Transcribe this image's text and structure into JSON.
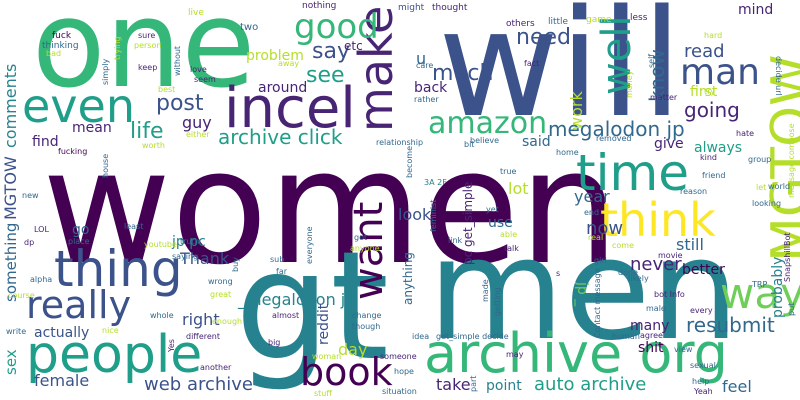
{
  "palette": {
    "dark_purple": "#440154",
    "purple": "#482475",
    "indigo": "#3b528b",
    "blue": "#31688e",
    "teal": "#26828e",
    "teal_green": "#1f9e89",
    "green": "#35b779",
    "light_green": "#6ece58",
    "lime": "#b5de2b",
    "yellow": "#fde725"
  },
  "words": {
    "women": "women",
    "will": "will",
    "gt": "gt",
    "men": "men",
    "one": "one",
    "incel": "incel",
    "archive_org": "archive org",
    "people": "people",
    "time": "time",
    "think": "think",
    "mgtow_big": "MGTOW",
    "thing": "thing",
    "even": "even",
    "make": "make",
    "well": "well",
    "man": "man",
    "good": "good",
    "really": "really",
    "want": "want",
    "book": "book",
    "way": "way",
    "amazon": "amazon",
    "archive_click": "archive click",
    "megalodon_jp": "megalodon jp",
    "much": "much",
    "need": "need",
    "say": "say",
    "see": "see",
    "post": "post",
    "life": "life",
    "going": "going",
    "know": "know",
    "read": "read",
    "work": "work",
    "resubmit": "resubmit",
    "web_archive": "web archive",
    "auto_archive": "auto archive",
    "mgtow_small": "MGTOW",
    "comments": "comments",
    "something": "something",
    "jp_pc": "jp pc",
    "thank": "Thank",
    "go": "go",
    "mean": "mean",
    "guy": "guy",
    "find": "find",
    "sex": "sex",
    "female": "female",
    "actually": "actually",
    "right": "right",
    "reddit": "reddit",
    "day": "day",
    "look": "look",
    "now": "now",
    "never": "never",
    "lot": "lot",
    "year": "year",
    "still": "still",
    "take": "take",
    "point": "point",
    "feel": "feel",
    "many": "many",
    "shit": "shit",
    "better": "better",
    "probably": "probably",
    "always": "always",
    "give": "give",
    "said": "said",
    "first": "first",
    "mind": "mind",
    "problem": "problem",
    "around": "around",
    "back": "back",
    "etc": "etc",
    "u": "u",
    "_megalodon_jp": "_megalodon jp",
    "pc_get_simple": "pc get_simple",
    "jp_": "jp _",
    "use": "use",
    "anything": "anything",
    "two": "two",
    "nothing": "nothing",
    "might": "might",
    "thought": "thought",
    "others": "others",
    "little": "little",
    "game": "game",
    "less": "less",
    "live": "live",
    "fuck": "fuck",
    "thinking": "thinking",
    "bad": "bad",
    "simply": "simply",
    "trying": "trying",
    "sure": "sure",
    "person": "person",
    "keep": "keep",
    "without": "without",
    "love": "love",
    "seem": "seem",
    "best": "best",
    "fucking": "fucking",
    "either": "either",
    "worth": "worth",
    "house": "house",
    "new": "new",
    "lol": "LOL",
    "dp": "dp",
    "alpha": "alpha",
    "course": "course",
    "write": "write",
    "nice": "nice",
    "whole": "whole",
    "yes": "Yes",
    "another": "another",
    "different": "different",
    "big": "big",
    "almost": "almost",
    "woman": "woman",
    "someone": "someone",
    "hope": "hope",
    "stuff": "stuff",
    "situation": "situation",
    "part": "part",
    "may": "may",
    "made": "made",
    "getting": "getting",
    "human": "human",
    "contact_message": "Contact message",
    "get_simple_decide": "get_simple decide",
    "idea": "idea",
    "agree": "agree",
    "male": "male",
    "bot_info": "bot Info",
    "every": "every",
    "view": "view",
    "sexual": "sexual",
    "help": "help",
    "yeah": "Yeah",
    "tr_p": "TRP",
    "put": "put",
    "snapshillbot": "SnapshillBot",
    "world": "world",
    "looking": "looking",
    "let": "let",
    "group": "group",
    "message_compose": "message compose",
    "hate": "hate",
    "kind": "kind",
    "friend": "friend",
    "reason": "reason",
    "end": "end",
    "real": "real",
    "come": "come",
    "done": "done",
    "movie": "movie",
    "likely": "likely",
    "girl": "girl",
    "s": "s",
    "talk": "talk",
    "link": "link",
    "able": "able",
    "yet": "yet",
    "true": "true",
    "3a_2f": "3A 2F",
    "feminist": "feminist",
    "become": "become",
    "relationship": "relationship",
    "believe": "believe",
    "bit": "bit",
    "home": "home",
    "removed": "removed",
    "fact": "fact",
    "care": "care",
    "rather": "rather",
    "self": "self",
    "money": "money",
    "matter": "matter",
    "try": "try",
    "hard": "hard",
    "decide_url": "decide url",
    "away": "away",
    "sub": "sub",
    "far": "far",
    "truth": "truth",
    "everyone": "everyone",
    "buy": "buy",
    "place": "place",
    "least": "least",
    "youtube": "youtube",
    "saying": "saying",
    "great": "great",
    "wrong": "wrong",
    "enough": "enough",
    "got": "got",
    "anyone": "anyone",
    "change": "change",
    "though": "though"
  }
}
